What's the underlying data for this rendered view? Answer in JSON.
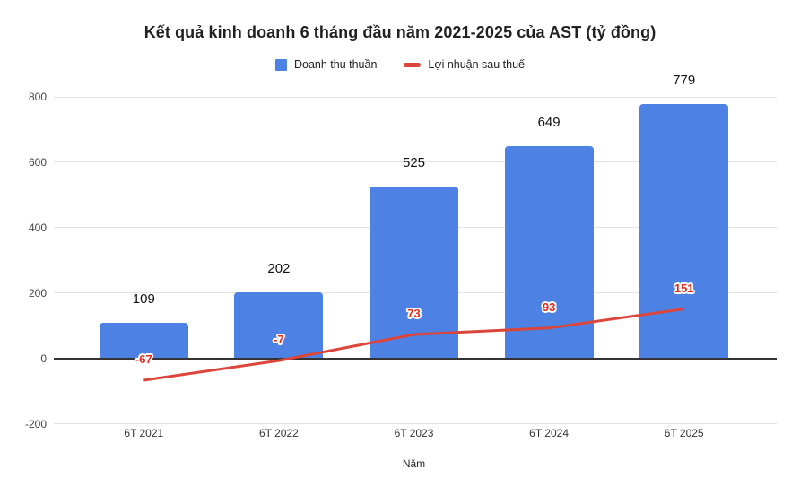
{
  "title": "Kết quả kinh doanh 6 tháng đầu năm 2021-2025 của AST (tỷ đồng)",
  "legend": {
    "items": [
      {
        "label": "Doanh thu thuần",
        "marker": "square",
        "color": "#4d82e4"
      },
      {
        "label": "Lợi nhuận sau thuế",
        "marker": "dash",
        "color": "#dc453a"
      }
    ]
  },
  "chart_data": {
    "type": "bar",
    "categories": [
      "6T 2021",
      "6T 2022",
      "6T 2023",
      "6T 2024",
      "6T 2025"
    ],
    "series": [
      {
        "name": "Doanh thu thuần",
        "type": "bar",
        "color": "#4d82e4",
        "values": [
          109,
          202,
          525,
          649,
          779
        ],
        "label_color": "#111111"
      },
      {
        "name": "Lợi nhuận sau thuế",
        "type": "line",
        "color": "#dc453a",
        "values": [
          -67,
          -7,
          73,
          93,
          151
        ],
        "label_color": "#e02a1e"
      }
    ],
    "title": "Kết quả kinh doanh 6 tháng đầu năm 2021-2025 của AST (tỷ đồng)",
    "xlabel": "Năm",
    "ylabel": "",
    "ylim": [
      -200,
      800
    ],
    "yticks": [
      -200,
      0,
      200,
      400,
      600,
      800
    ],
    "grid": true,
    "legend_position": "top",
    "colors": {
      "grid": "#e3e3e3",
      "zero_axis": "#333333",
      "title": "#212121",
      "tick_labels": "#444444"
    }
  }
}
